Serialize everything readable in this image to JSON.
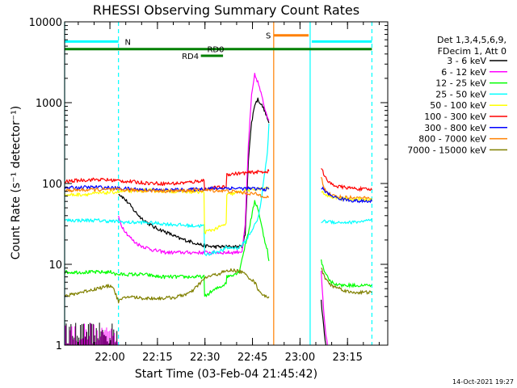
{
  "chart_data": {
    "type": "line",
    "title": "RHESSI Observing Summary Count Rates",
    "xlabel": "Start Time (03-Feb-04 21:45:42)",
    "ylabel": "Count Rate (s⁻¹ detector⁻¹)",
    "x_units": "minutes after 21:45:42",
    "xlim": [
      0,
      102
    ],
    "ylim": [
      1,
      10000
    ],
    "yscale": "log",
    "x_ticks": [
      {
        "x": 14.3,
        "label": "22:00"
      },
      {
        "x": 29.3,
        "label": "22:15"
      },
      {
        "x": 44.3,
        "label": "22:30"
      },
      {
        "x": 59.3,
        "label": "22:45"
      },
      {
        "x": 74.3,
        "label": "23:00"
      },
      {
        "x": 89.3,
        "label": "23:15"
      }
    ],
    "y_ticks": [
      {
        "y": 1,
        "label": "1"
      },
      {
        "y": 10,
        "label": "10"
      },
      {
        "y": 100,
        "label": "100"
      },
      {
        "y": 1000,
        "label": "1000"
      },
      {
        "y": 10000,
        "label": "10000"
      }
    ],
    "legend_header": [
      "Det 1,3,4,5,6,9,",
      "FDecim 1, Att 0"
    ],
    "series": [
      {
        "name": "3 - 6 keV",
        "color": "#000000",
        "x": [
          17,
          18,
          20,
          22,
          24,
          26,
          28,
          30,
          32,
          34,
          36,
          38,
          40,
          42,
          44,
          47,
          50,
          53,
          56,
          57,
          58,
          59,
          60,
          61,
          62,
          63,
          64.5
        ],
        "y": [
          75,
          70,
          58,
          46,
          38,
          33,
          29,
          27,
          25,
          23,
          21,
          20,
          19,
          18,
          17,
          16.5,
          16.5,
          16.5,
          16.5,
          23,
          200,
          560,
          950,
          1100,
          960,
          820,
          560
        ]
      },
      {
        "name": "6 - 12 keV",
        "color": "#ff00ff",
        "x": [
          17,
          18,
          20,
          22,
          24,
          26,
          28,
          30,
          32,
          34,
          36,
          38,
          40,
          42,
          44,
          47,
          50,
          53,
          56,
          57,
          58,
          59,
          60,
          61,
          62,
          63,
          64.5
        ],
        "y": [
          38,
          30,
          23,
          19,
          17,
          16,
          15,
          14.5,
          14,
          14,
          14,
          14,
          14,
          14,
          14,
          14,
          14,
          14,
          14.5,
          30,
          300,
          1200,
          2200,
          1800,
          1300,
          900,
          600
        ]
      },
      {
        "name": "12 - 25 keV",
        "color": "#00ff00",
        "x": [
          0,
          5,
          10,
          15.5,
          16,
          20,
          25,
          30,
          35,
          40,
          44,
          44.2,
          46,
          48,
          50,
          51,
          51.2,
          55,
          58,
          60,
          61,
          62,
          63,
          64,
          64.5
        ],
        "y": [
          8,
          8,
          8,
          8,
          7.5,
          7.5,
          7.5,
          7,
          7,
          7,
          7,
          4,
          4.5,
          5,
          5.5,
          6,
          7,
          8,
          25,
          60,
          50,
          32,
          21,
          15,
          11
        ]
      },
      {
        "name": "25 - 50 keV",
        "color": "#00ffff",
        "x": [
          0,
          5,
          10,
          15,
          20,
          25,
          30,
          35,
          40,
          44,
          44.2,
          47,
          50,
          51,
          51.2,
          55,
          57,
          59,
          61,
          62,
          63,
          64,
          64.5
        ],
        "y": [
          35,
          35,
          35,
          34,
          33,
          33,
          32,
          31,
          30,
          30,
          13,
          14,
          15,
          16,
          16,
          16,
          19,
          26,
          36,
          60,
          120,
          250,
          550
        ]
      },
      {
        "name": "50 - 100 keV",
        "color": "#ffff00",
        "x": [
          0,
          5,
          10,
          15,
          20,
          25,
          30,
          35,
          40,
          44,
          44.2,
          47,
          50,
          51,
          51.2,
          55,
          60,
          63,
          64.5
        ],
        "y": [
          72,
          73,
          75,
          78,
          80,
          82,
          81,
          80,
          79,
          78,
          25,
          27,
          30,
          32,
          72,
          78,
          85,
          86,
          88
        ]
      },
      {
        "name": "100 - 300 keV",
        "color": "#ff0000",
        "x": [
          0,
          5,
          10,
          15,
          20,
          25,
          30,
          35,
          40,
          44,
          44.2,
          47,
          50,
          51,
          51.2,
          55,
          60,
          63,
          64.5
        ],
        "y": [
          105,
          110,
          112,
          110,
          106,
          102,
          100,
          100,
          104,
          110,
          85,
          88,
          90,
          92,
          130,
          133,
          138,
          140,
          142
        ]
      },
      {
        "name": "300 - 800 keV",
        "color": "#0000ff",
        "x": [
          0,
          5,
          10,
          15,
          20,
          25,
          30,
          35,
          40,
          44,
          47,
          51,
          55,
          60,
          63,
          64.5
        ],
        "y": [
          88,
          89,
          90,
          88,
          86,
          84,
          83,
          83,
          84,
          86,
          87,
          88,
          87,
          86,
          85,
          85
        ]
      },
      {
        "name": "800 - 7000 keV",
        "color": "#ff8000",
        "x": [
          0,
          5,
          10,
          15,
          20,
          25,
          30,
          35,
          40,
          44,
          47,
          51,
          55,
          60,
          63,
          64.5
        ],
        "y": [
          82,
          83,
          84,
          84,
          83,
          82,
          81,
          81,
          82,
          83,
          82,
          81,
          78,
          74,
          70,
          68
        ]
      },
      {
        "name": "7000 - 15000 keV",
        "color": "#808000",
        "x": [
          0,
          5,
          10,
          15,
          17,
          20,
          25,
          30,
          35,
          40,
          43,
          45,
          48,
          50,
          53,
          56,
          58,
          59,
          60,
          61,
          62,
          63,
          64.5
        ],
        "y": [
          4,
          4.5,
          5,
          5.5,
          3.5,
          4,
          3.8,
          3.8,
          3.9,
          4.5,
          6,
          7,
          7.5,
          8,
          8.5,
          8,
          7,
          6.5,
          6,
          5,
          4.5,
          4,
          4
        ]
      }
    ],
    "post_gap_series": [
      {
        "color": "#ff0000",
        "x": [
          81,
          83,
          86,
          90,
          94,
          97
        ],
        "y": [
          155,
          105,
          92,
          88,
          85,
          84
        ]
      },
      {
        "color": "#ff8000",
        "x": [
          81,
          82,
          84,
          87,
          90,
          94,
          97
        ],
        "y": [
          120,
          85,
          72,
          68,
          67,
          66,
          65
        ]
      },
      {
        "color": "#ffff00",
        "x": [
          81,
          83,
          86,
          90,
          94,
          97
        ],
        "y": [
          80,
          70,
          66,
          64,
          63,
          62
        ]
      },
      {
        "color": "#0000ff",
        "x": [
          81,
          83,
          86,
          90,
          94,
          97
        ],
        "y": [
          90,
          75,
          66,
          62,
          60,
          60
        ]
      },
      {
        "color": "#00ffff",
        "x": [
          81,
          83,
          86,
          90,
          94,
          97
        ],
        "y": [
          34,
          34,
          33,
          33,
          34,
          35
        ]
      },
      {
        "color": "#00ff00",
        "x": [
          81,
          82,
          84,
          87,
          90,
          94,
          97
        ],
        "y": [
          11,
          8,
          6,
          5.5,
          5.5,
          5.5,
          5.5
        ]
      },
      {
        "color": "#808000",
        "x": [
          81,
          82,
          84,
          87,
          90,
          94,
          97
        ],
        "y": [
          9,
          7,
          5.5,
          5,
          4.5,
          4.5,
          4.5
        ]
      },
      {
        "color": "#ff00ff",
        "x": [
          81,
          81.5,
          82,
          82.5,
          83
        ],
        "y": [
          8,
          4,
          2,
          1.3,
          1
        ]
      },
      {
        "color": "#000000",
        "x": [
          81,
          81.5,
          82,
          82.5
        ],
        "y": [
          3.5,
          2.2,
          1.4,
          1
        ]
      }
    ],
    "flags": [
      {
        "label": "N",
        "color": "#00ffff",
        "x": [
          0,
          17
        ],
        "y": 5700,
        "label_x": 19
      },
      {
        "label": "",
        "color": "#00ffff",
        "x": [
          78,
          97
        ],
        "y": 5700
      },
      {
        "label": "RD0",
        "color": "#008000",
        "x": [
          0,
          97
        ],
        "y": 4600,
        "label_x": 45
      },
      {
        "label": "RD4",
        "color": "#008000",
        "x": [
          43,
          50
        ],
        "y": 3800,
        "label_x": 37
      },
      {
        "label": "S",
        "color": "#ff8000",
        "x": [
          66,
          77
        ],
        "y": 6800,
        "label_x": 63.5
      }
    ],
    "vlines": [
      {
        "x": 0,
        "color": "#00ffff",
        "dash": false
      },
      {
        "x": 17,
        "color": "#00ffff",
        "dash": true
      },
      {
        "x": 66,
        "color": "#ff8000",
        "dash": false
      },
      {
        "x": 77.5,
        "color": "#00ffff",
        "dash": false
      },
      {
        "x": 97,
        "color": "#00ffff",
        "dash": true
      }
    ],
    "noise_band": {
      "x": [
        0,
        17
      ],
      "y_low": 1,
      "y_high": 1.9
    }
  },
  "footer": {
    "timestamp": "14-Oct-2021 19:27"
  }
}
